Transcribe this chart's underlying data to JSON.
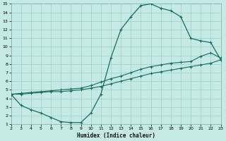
{
  "xlabel": "Humidex (Indice chaleur)",
  "xlim": [
    2,
    23
  ],
  "ylim": [
    1,
    15
  ],
  "xticks": [
    2,
    3,
    4,
    5,
    6,
    7,
    8,
    9,
    10,
    11,
    12,
    13,
    14,
    15,
    16,
    17,
    18,
    19,
    20,
    21,
    22,
    23
  ],
  "yticks": [
    1,
    2,
    3,
    4,
    5,
    6,
    7,
    8,
    9,
    10,
    11,
    12,
    13,
    14,
    15
  ],
  "bg_color": "#c5eae5",
  "grid_color": "#9ecfc8",
  "line_color": "#1a6b5a",
  "upper_diag_x": [
    2,
    3,
    4,
    5,
    6,
    7,
    8,
    9,
    10,
    11,
    12,
    13,
    14,
    15,
    16,
    17,
    18,
    19,
    20,
    21,
    22,
    23
  ],
  "upper_diag_y": [
    4.5,
    4.6,
    4.7,
    4.8,
    4.9,
    5.0,
    5.1,
    5.2,
    5.5,
    5.9,
    6.3,
    6.6,
    7.0,
    7.4,
    7.7,
    7.9,
    8.1,
    8.2,
    8.3,
    8.9,
    9.3,
    8.7
  ],
  "lower_diag_x": [
    2,
    3,
    4,
    5,
    6,
    7,
    8,
    9,
    10,
    11,
    12,
    13,
    14,
    15,
    16,
    17,
    18,
    19,
    20,
    21,
    22,
    23
  ],
  "lower_diag_y": [
    4.5,
    4.5,
    4.6,
    4.7,
    4.8,
    4.8,
    4.9,
    5.0,
    5.2,
    5.4,
    5.7,
    6.0,
    6.3,
    6.6,
    6.9,
    7.1,
    7.3,
    7.5,
    7.7,
    7.9,
    8.1,
    8.5
  ],
  "curve_x": [
    2,
    3,
    4,
    5,
    6,
    7,
    8,
    9,
    10,
    11,
    12,
    13,
    14,
    15,
    16,
    17,
    18,
    19,
    20,
    21,
    22,
    23
  ],
  "curve_y": [
    4.5,
    3.2,
    2.7,
    2.3,
    1.8,
    1.3,
    1.2,
    1.2,
    2.3,
    4.5,
    8.7,
    12.0,
    13.5,
    14.8,
    15.0,
    14.5,
    14.2,
    13.5,
    11.0,
    10.7,
    10.5,
    8.5
  ]
}
